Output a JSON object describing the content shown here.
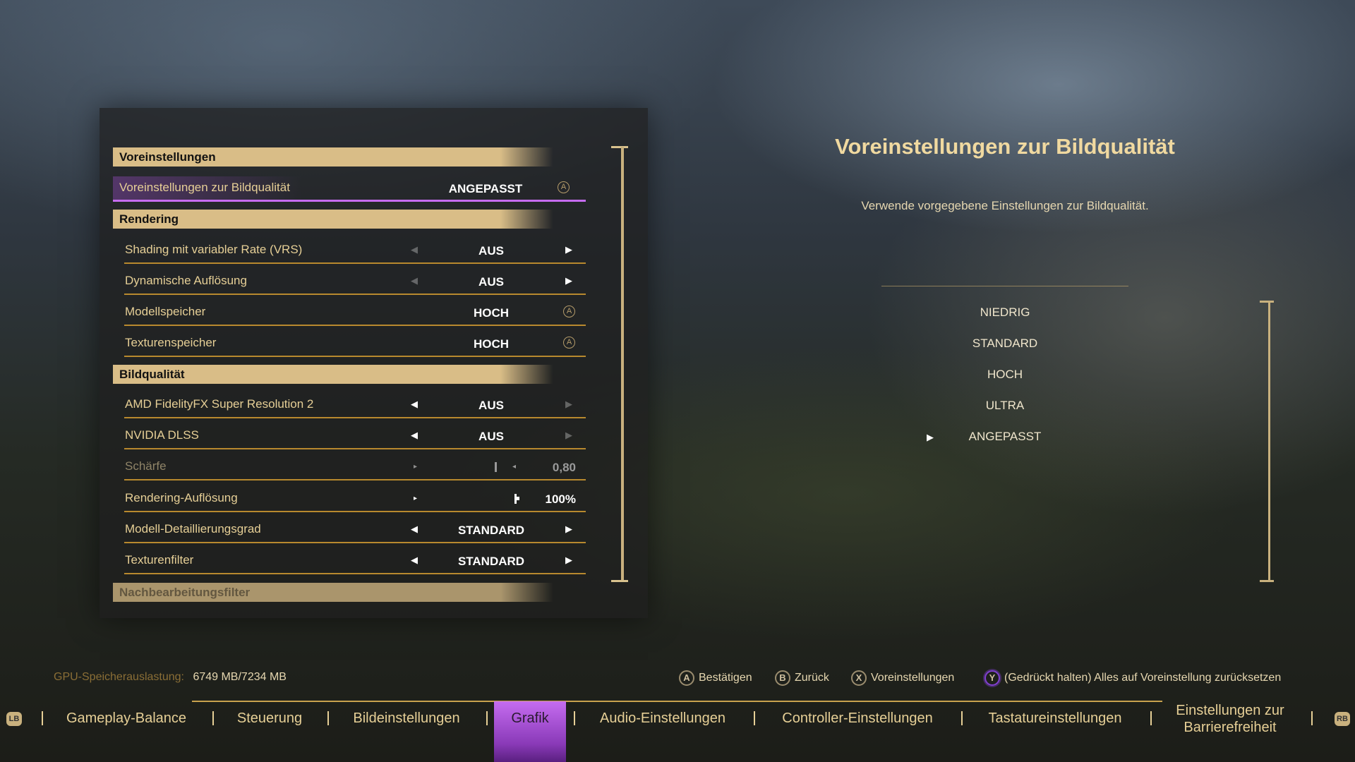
{
  "settings": {
    "sections": [
      "Voreinstellungen",
      "Rendering",
      "Bildqualität",
      "Nachbearbeitungsfilter"
    ],
    "rows": [
      {
        "label": "Voreinstellungen zur Bildqualität",
        "value": "ANGEPASST",
        "kind": "button",
        "selected": true
      },
      {
        "label": "Shading mit variabler Rate (VRS)",
        "value": "AUS",
        "kind": "cycle",
        "left_enabled": false,
        "right_enabled": true
      },
      {
        "label": "Dynamische Auflösung",
        "value": "AUS",
        "kind": "cycle",
        "left_enabled": false,
        "right_enabled": true
      },
      {
        "label": "Modellspeicher",
        "value": "HOCH",
        "kind": "button"
      },
      {
        "label": "Texturenspeicher",
        "value": "HOCH",
        "kind": "button"
      },
      {
        "label": "AMD FidelityFX Super Resolution 2",
        "value": "AUS",
        "kind": "cycle",
        "left_enabled": true,
        "right_enabled": false
      },
      {
        "label": "NVIDIA DLSS",
        "value": "AUS",
        "kind": "cycle",
        "left_enabled": true,
        "right_enabled": false
      },
      {
        "label": "Schärfe",
        "value": "0,80",
        "kind": "slider",
        "disabled": true
      },
      {
        "label": "Rendering-Auflösung",
        "value": "100%",
        "kind": "slider"
      },
      {
        "label": "Modell-Detaillierungsgrad",
        "value": "STANDARD",
        "kind": "cycle",
        "left_enabled": true,
        "right_enabled": true
      },
      {
        "label": "Texturenfilter",
        "value": "STANDARD",
        "kind": "cycle",
        "left_enabled": true,
        "right_enabled": true
      }
    ]
  },
  "detail": {
    "title": "Voreinstellungen zur Bildqualität",
    "description": "Verwende vorgegebene Einstellungen zur Bildqualität.",
    "options": [
      "NIEDRIG",
      "STANDARD",
      "HOCH",
      "ULTRA",
      "ANGEPASST"
    ],
    "selected_option": "ANGEPASST"
  },
  "gpu": {
    "label": "GPU-Speicherauslastung:",
    "value": "6749 MB/7234 MB"
  },
  "hints": [
    {
      "key": "A",
      "label": "Bestätigen"
    },
    {
      "key": "B",
      "label": "Zurück"
    },
    {
      "key": "X",
      "label": "Voreinstellungen"
    },
    {
      "key": "Y",
      "label": "(Gedrückt halten) Alles auf Voreinstellung zurücksetzen"
    }
  ],
  "tabs": {
    "lb": "LB",
    "rb": "RB",
    "items": [
      "Gameplay-Balance",
      "Steuerung",
      "Bildeinstellungen",
      "Grafik",
      "Audio-Einstellungen",
      "Controller-Einstellungen",
      "Tastatureinstellungen",
      "Einstellungen zur Barrierefreiheit"
    ],
    "active": "Grafik"
  },
  "colors": {
    "accent": "#c56cf0",
    "gold": "#d9bd87",
    "label": "#e6cf96"
  }
}
